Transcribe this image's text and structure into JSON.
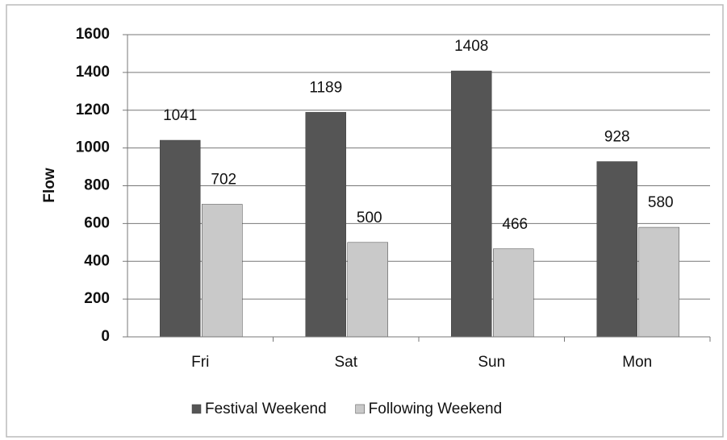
{
  "chart_data": {
    "type": "bar",
    "y_label": "Flow",
    "categories": [
      "Fri",
      "Sat",
      "Sun",
      "Mon"
    ],
    "series": [
      {
        "name": "Festival Weekend",
        "color": "#555555",
        "values": [
          1041,
          1189,
          1408,
          928
        ]
      },
      {
        "name": "Following Weekend",
        "color": "#c9c9c9",
        "values": [
          702,
          500,
          466,
          580
        ]
      }
    ],
    "ylim": [
      0,
      1600
    ],
    "yticks": [
      0,
      200,
      400,
      600,
      800,
      1000,
      1200,
      1400,
      1600
    ],
    "grid": true,
    "legend": "bottom"
  }
}
